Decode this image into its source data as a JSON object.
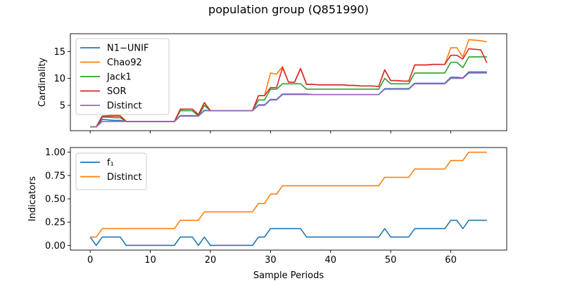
{
  "figure": {
    "title": "population group (Q851990)",
    "xlabel": "Sample Periods"
  },
  "colors": {
    "blue": "#1f77b4",
    "orange": "#ff7f0e",
    "green": "#2ca02c",
    "red": "#d62728",
    "purple": "#9467bd"
  },
  "chart_data": [
    {
      "type": "line",
      "ylabel": "Cardinality",
      "xlim": [
        -3.3,
        69.3
      ],
      "ylim": [
        0.3,
        18.3
      ],
      "xticks": [
        0,
        10,
        20,
        30,
        40,
        50,
        60
      ],
      "yticks": [
        5,
        10,
        15
      ],
      "legend_position": "top-left",
      "x": [
        0,
        1,
        2,
        3,
        4,
        5,
        6,
        7,
        8,
        9,
        10,
        11,
        12,
        13,
        14,
        15,
        16,
        17,
        18,
        19,
        20,
        21,
        22,
        23,
        24,
        25,
        26,
        27,
        28,
        29,
        30,
        31,
        32,
        33,
        34,
        35,
        36,
        37,
        38,
        39,
        40,
        41,
        42,
        43,
        44,
        45,
        46,
        47,
        48,
        49,
        50,
        51,
        52,
        53,
        54,
        55,
        56,
        57,
        58,
        59,
        60,
        61,
        62,
        63,
        64,
        65,
        66
      ],
      "series": [
        {
          "name": "N1−UNIF",
          "color": "#1f77b4",
          "values": [
            1,
            1,
            2.4,
            2.3,
            2.2,
            2.2,
            2,
            2,
            2,
            2,
            2,
            2,
            2,
            2,
            2,
            3.1,
            3.1,
            3.1,
            3,
            4.1,
            4,
            4,
            4,
            4,
            4,
            4,
            4,
            4,
            5.1,
            5.1,
            6.1,
            6.1,
            7.1,
            7.1,
            7.1,
            7.1,
            7.1,
            7,
            7,
            7,
            7,
            7,
            7,
            7,
            7,
            7,
            7,
            7,
            7,
            8.1,
            8.1,
            8.1,
            8.1,
            8.1,
            9.1,
            9.1,
            9.1,
            9.1,
            9.1,
            9.1,
            10.2,
            10.2,
            10.1,
            11.2,
            11.2,
            11.2,
            11.2
          ]
        },
        {
          "name": "Chao92",
          "color": "#ff7f0e",
          "values": [
            1,
            1,
            3,
            3.1,
            3.2,
            3.1,
            2,
            2,
            2,
            2,
            2,
            2,
            2,
            2,
            2,
            4.2,
            4.3,
            4.3,
            3.2,
            5.5,
            4,
            4,
            4,
            4,
            4,
            4,
            4,
            4,
            6.8,
            6.8,
            11,
            10.8,
            12.2,
            9.3,
            9.3,
            11.9,
            8.9,
            8.9,
            8.8,
            8.8,
            8.8,
            8.8,
            8.8,
            8.7,
            8.7,
            8.6,
            8.6,
            8.6,
            8.5,
            11.6,
            9.6,
            9.6,
            9.5,
            9.5,
            12.5,
            12.5,
            12.5,
            12.6,
            12.6,
            12.6,
            15.7,
            15.7,
            14,
            17.2,
            17.1,
            17,
            16.8
          ]
        },
        {
          "name": "Jack1",
          "color": "#2ca02c",
          "values": [
            1,
            1,
            2.8,
            2.8,
            2.7,
            2.7,
            2,
            2,
            2,
            2,
            2,
            2,
            2,
            2,
            2,
            4,
            4,
            4,
            3,
            5,
            4,
            4,
            4,
            4,
            4,
            4,
            4,
            4,
            6,
            6,
            8,
            8,
            9,
            9,
            9,
            9,
            8,
            8,
            8,
            8,
            8,
            8,
            8,
            8,
            8,
            8,
            8,
            8,
            8,
            10,
            9,
            9,
            9,
            9,
            11,
            11,
            11,
            11,
            11,
            11,
            13,
            13,
            12,
            14,
            14,
            14,
            14
          ]
        },
        {
          "name": "SOR",
          "color": "#d62728",
          "values": [
            1,
            1,
            3,
            3,
            3,
            3,
            2,
            2,
            2,
            2,
            2,
            2,
            2,
            2,
            2,
            4.3,
            4.3,
            4.3,
            3.3,
            5.5,
            4,
            4,
            4,
            4,
            4,
            4,
            4,
            4,
            6.8,
            6.8,
            8.3,
            8.3,
            12,
            9.3,
            9.3,
            11.8,
            8.9,
            8.9,
            8.8,
            8.8,
            8.8,
            8.8,
            8.8,
            8.7,
            8.7,
            8.6,
            8.6,
            8.6,
            8.5,
            11.6,
            9.6,
            9.6,
            9.5,
            9.5,
            12.5,
            12.5,
            12.5,
            12.6,
            12.6,
            12.6,
            14.3,
            14.3,
            13.6,
            15.5,
            15.4,
            15.3,
            12.9
          ]
        },
        {
          "name": "Distinct",
          "color": "#9467bd",
          "values": [
            1,
            1,
            2,
            2,
            2,
            2,
            2,
            2,
            2,
            2,
            2,
            2,
            2,
            2,
            2,
            3,
            3,
            3,
            3,
            4,
            4,
            4,
            4,
            4,
            4,
            4,
            4,
            4,
            5,
            5,
            6,
            6,
            7,
            7,
            7,
            7,
            7,
            7,
            7,
            7,
            7,
            7,
            7,
            7,
            7,
            7,
            7,
            7,
            7,
            8,
            8,
            8,
            8,
            8,
            9,
            9,
            9,
            9,
            9,
            9,
            10,
            10,
            10,
            11,
            11,
            11,
            11
          ]
        }
      ]
    },
    {
      "type": "line",
      "ylabel": "Indicators",
      "xlim": [
        -3.3,
        69.3
      ],
      "ylim": [
        -0.05,
        1.05
      ],
      "xticks": [
        0,
        10,
        20,
        30,
        40,
        50,
        60
      ],
      "yticks": [
        0.0,
        0.25,
        0.5,
        0.75,
        1.0
      ],
      "legend_position": "top-left",
      "x": [
        0,
        1,
        2,
        3,
        4,
        5,
        6,
        7,
        8,
        9,
        10,
        11,
        12,
        13,
        14,
        15,
        16,
        17,
        18,
        19,
        20,
        21,
        22,
        23,
        24,
        25,
        26,
        27,
        28,
        29,
        30,
        31,
        32,
        33,
        34,
        35,
        36,
        37,
        38,
        39,
        40,
        41,
        42,
        43,
        44,
        45,
        46,
        47,
        48,
        49,
        50,
        51,
        52,
        53,
        54,
        55,
        56,
        57,
        58,
        59,
        60,
        61,
        62,
        63,
        64,
        65,
        66
      ],
      "series": [
        {
          "name": "f₁",
          "color": "#1f77b4",
          "values": [
            0.09,
            0,
            0.09,
            0.09,
            0.09,
            0.09,
            0,
            0,
            0,
            0,
            0,
            0,
            0,
            0,
            0,
            0.09,
            0.09,
            0.09,
            0,
            0.09,
            0,
            0,
            0,
            0,
            0,
            0,
            0,
            0,
            0.09,
            0.09,
            0.18,
            0.18,
            0.18,
            0.18,
            0.18,
            0.18,
            0.09,
            0.09,
            0.09,
            0.09,
            0.09,
            0.09,
            0.09,
            0.09,
            0.09,
            0.09,
            0.09,
            0.09,
            0.09,
            0.18,
            0.09,
            0.09,
            0.09,
            0.09,
            0.18,
            0.18,
            0.18,
            0.18,
            0.18,
            0.18,
            0.27,
            0.27,
            0.18,
            0.27,
            0.27,
            0.27,
            0.27
          ]
        },
        {
          "name": "Distinct",
          "color": "#ff7f0e",
          "values": [
            0.09,
            0.09,
            0.18,
            0.18,
            0.18,
            0.18,
            0.18,
            0.18,
            0.18,
            0.18,
            0.18,
            0.18,
            0.18,
            0.18,
            0.18,
            0.27,
            0.27,
            0.27,
            0.27,
            0.36,
            0.36,
            0.36,
            0.36,
            0.36,
            0.36,
            0.36,
            0.36,
            0.36,
            0.45,
            0.45,
            0.55,
            0.55,
            0.64,
            0.64,
            0.64,
            0.64,
            0.64,
            0.64,
            0.64,
            0.64,
            0.64,
            0.64,
            0.64,
            0.64,
            0.64,
            0.64,
            0.64,
            0.64,
            0.64,
            0.73,
            0.73,
            0.73,
            0.73,
            0.73,
            0.82,
            0.82,
            0.82,
            0.82,
            0.82,
            0.82,
            0.91,
            0.91,
            0.91,
            1.0,
            1.0,
            1.0,
            1.0
          ]
        }
      ]
    }
  ]
}
